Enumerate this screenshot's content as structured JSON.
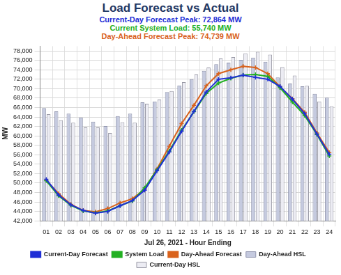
{
  "chart_data": {
    "type": "line",
    "title": "Load Forecast vs Actual",
    "subtitles": [
      {
        "text": "Current-Day Forecast Peak:  72,864 MW",
        "color": "#1f2fd6"
      },
      {
        "text": "Current System Load:  55,740 MW",
        "color": "#22b022"
      },
      {
        "text": "Day-Ahead Forecast Peak:  74,739 MW",
        "color": "#d9621c"
      }
    ],
    "x_label": "Jul 26, 2021 - Hour Ending",
    "y_label": "MW",
    "categories": [
      "01",
      "02",
      "03",
      "04",
      "05",
      "06",
      "07",
      "08",
      "09",
      "10",
      "11",
      "12",
      "13",
      "14",
      "15",
      "16",
      "17",
      "18",
      "19",
      "20",
      "21",
      "22",
      "23",
      "24"
    ],
    "series": [
      {
        "name": "Current-Day Forecast",
        "type": "line",
        "color": "#1f2fd6",
        "marker": "cross",
        "values": [
          50800,
          47500,
          45400,
          44200,
          43600,
          44000,
          45200,
          46300,
          48500,
          52600,
          56600,
          61000,
          65200,
          69300,
          72000,
          72300,
          72864,
          72400,
          72000,
          70500,
          67800,
          64700,
          60400,
          56100
        ]
      },
      {
        "name": "System Load",
        "type": "line",
        "color": "#22b022",
        "marker": "cross",
        "values": [
          50500,
          47300,
          45300,
          44100,
          43700,
          44100,
          45200,
          46200,
          49000,
          52800,
          56800,
          61200,
          65100,
          69000,
          71200,
          72200,
          72900,
          73000,
          72600,
          70200,
          67200,
          64300,
          60300,
          55740
        ]
      },
      {
        "name": "Day-Ahead Forecast",
        "type": "line",
        "color": "#d9621c",
        "marker": "cross",
        "values": [
          50600,
          47800,
          45500,
          44200,
          43900,
          44600,
          45800,
          46700,
          48700,
          53000,
          57800,
          62600,
          66500,
          70600,
          73200,
          74000,
          74739,
          74500,
          73200,
          70400,
          67900,
          65000,
          60600,
          56500
        ]
      },
      {
        "name": "Day-Ahead HSL",
        "type": "bar",
        "color": "#c5cadf",
        "values": [
          65900,
          65200,
          64700,
          63900,
          63000,
          62100,
          64200,
          64700,
          67100,
          67300,
          69300,
          70700,
          72000,
          73800,
          75200,
          75500,
          76100,
          76600,
          75700,
          72400,
          71100,
          70500,
          68900,
          68100
        ]
      },
      {
        "name": "Current-Day HSL",
        "type": "bar",
        "color": "#ececf3",
        "values": [
          64600,
          63300,
          62800,
          61800,
          61800,
          60600,
          62900,
          62800,
          66800,
          67700,
          69500,
          71400,
          73000,
          74500,
          76400,
          76700,
          77500,
          77800,
          77200,
          74600,
          72800,
          70600,
          67300,
          66300
        ]
      }
    ],
    "ylim": [
      42000,
      79000
    ],
    "yticks": [
      {
        "value": 42000,
        "label": "42,000"
      },
      {
        "value": 44000,
        "label": "44,000"
      },
      {
        "value": 46000,
        "label": "46,000"
      },
      {
        "value": 48000,
        "label": "48,000"
      },
      {
        "value": 50000,
        "label": "50,000"
      },
      {
        "value": 52000,
        "label": "52,000"
      },
      {
        "value": 54000,
        "label": "54,000"
      },
      {
        "value": 56000,
        "label": "56,000"
      },
      {
        "value": 58000,
        "label": "58,000"
      },
      {
        "value": 60000,
        "label": "60,000"
      },
      {
        "value": 62000,
        "label": "62,000"
      },
      {
        "value": 64000,
        "label": "64,000"
      },
      {
        "value": 66000,
        "label": "66,000"
      },
      {
        "value": 68000,
        "label": "68,000"
      },
      {
        "value": 70000,
        "label": "70,000"
      },
      {
        "value": 72000,
        "label": "72,000"
      },
      {
        "value": 74000,
        "label": "74,000"
      },
      {
        "value": 76000,
        "label": "76,000"
      },
      {
        "value": 78000,
        "label": "78,000"
      }
    ],
    "grid": true,
    "legend": "bottom"
  }
}
